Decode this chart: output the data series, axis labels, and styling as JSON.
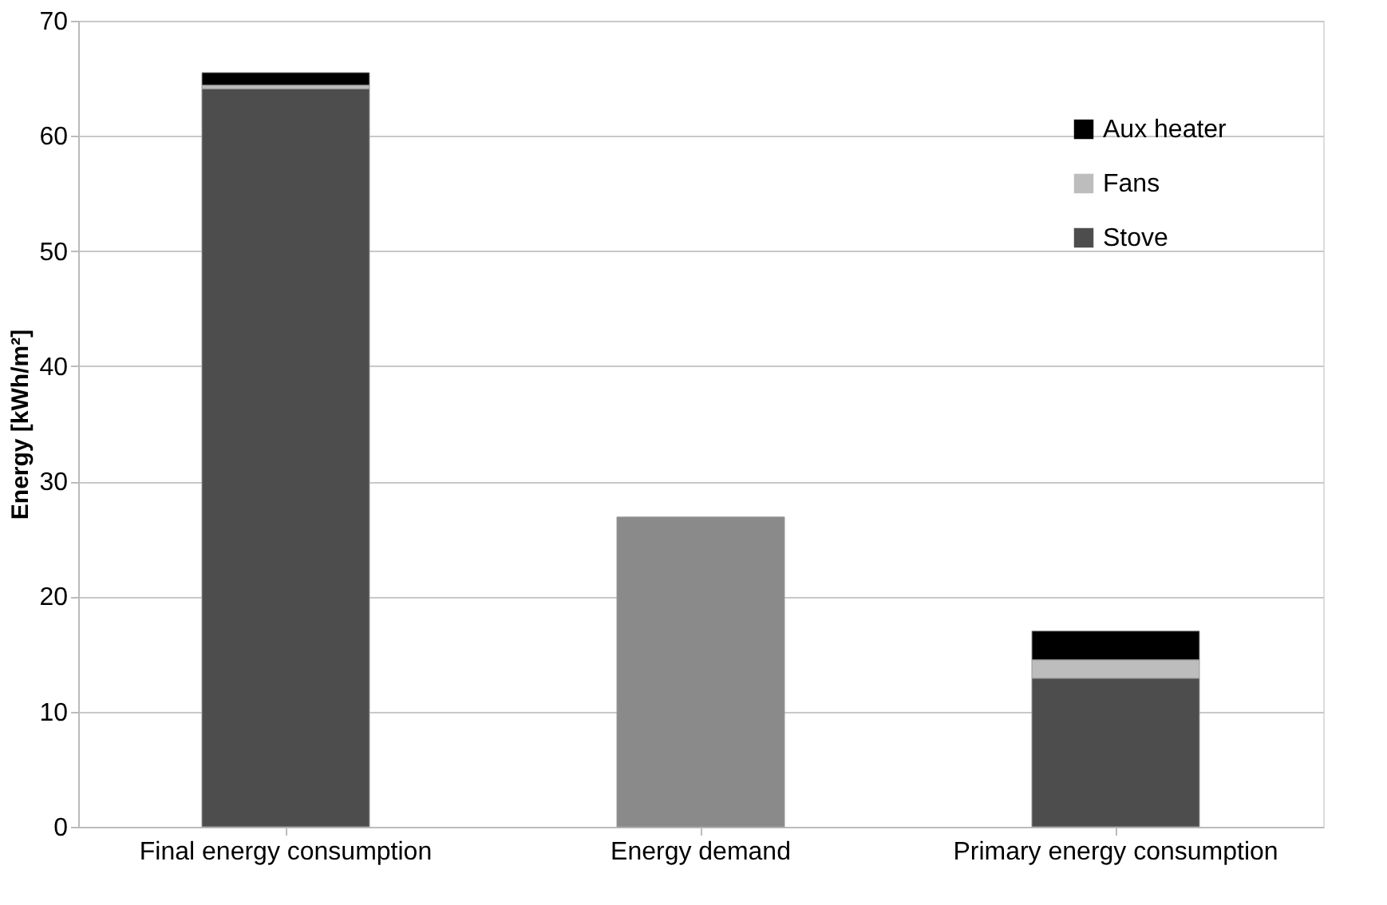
{
  "chart_data": {
    "type": "bar",
    "stacked": true,
    "ylabel": "Energy [kWh/m²]",
    "categories": [
      "Final energy consumption",
      "Energy demand",
      "Primary energy consumption"
    ],
    "series": [
      {
        "name": "Stove",
        "color": "#4d4d4d",
        "values": [
          64.1,
          null,
          12.9
        ]
      },
      {
        "name": "Fans",
        "color": "#bdbdbd",
        "values": [
          0.3,
          null,
          1.6
        ]
      },
      {
        "name": "Aux heater",
        "color": "#000000",
        "values": [
          1.1,
          null,
          2.5
        ]
      },
      {
        "color": "#8a8a8a",
        "values": [
          null,
          26.9,
          null
        ]
      }
    ],
    "ylim": [
      0,
      70
    ],
    "yticks": [
      0,
      10,
      20,
      30,
      40,
      50,
      60,
      70
    ],
    "grid": "y",
    "legend": "top right"
  }
}
